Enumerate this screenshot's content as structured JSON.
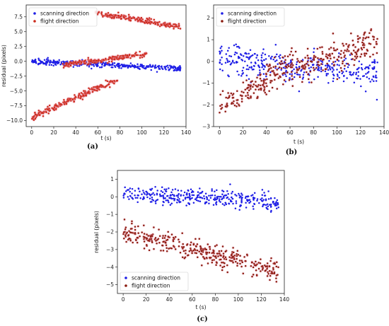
{
  "chart_data": [
    {
      "type": "scatter",
      "caption": "(a)",
      "xlabel": "t (s)",
      "ylabel": "residual (pixels)",
      "xlim": [
        -5,
        140
      ],
      "ylim": [
        -11,
        9.5
      ],
      "xticks": [
        0,
        20,
        40,
        60,
        80,
        100,
        120,
        140
      ],
      "yticks": [
        -10.0,
        -7.5,
        -5.0,
        -2.5,
        0.0,
        2.5,
        5.0,
        7.5
      ],
      "ytick_labels": [
        "−10.0",
        "−7.5",
        "−5.0",
        "−2.5",
        "0.0",
        "2.5",
        "5.0",
        "7.5"
      ],
      "legend": {
        "position": "top-left",
        "entries": [
          "scanning direction",
          "flight direction"
        ]
      },
      "series": [
        {
          "name": "scanning direction",
          "color": "#1f1fe6",
          "model": {
            "segments": [
              {
                "x": [
                  0,
                  135
                ],
                "y": [
                  0,
                  -1.2
                ],
                "noise": 0.4
              }
            ]
          }
        },
        {
          "name": "flight direction",
          "color": "#cc2a1a",
          "model": {
            "segments": [
              {
                "x": [
                  0,
                  78
                ],
                "y": [
                  -9.5,
                  -3
                ],
                "noise": 0.5
              },
              {
                "x": [
                  28,
                  105
                ],
                "y": [
                  -0.6,
                  1.2
                ],
                "noise": 0.4
              },
              {
                "x": [
                  58,
                  135
                ],
                "y": [
                  8.2,
                  5.8
                ],
                "noise": 0.4
              }
            ]
          }
        }
      ]
    },
    {
      "type": "scatter",
      "caption": "(b)",
      "xlabel": "t (s)",
      "ylabel": "",
      "xlim": [
        -5,
        140
      ],
      "ylim": [
        -3,
        2.6
      ],
      "xticks": [
        0,
        20,
        40,
        60,
        80,
        100,
        120,
        140
      ],
      "yticks": [
        -3,
        -2,
        -1,
        0,
        1,
        2
      ],
      "ytick_labels": [
        "−3",
        "−2",
        "−1",
        "0",
        "1",
        "2"
      ],
      "legend": {
        "position": "top-left",
        "entries": [
          "scanning direction",
          "flight direction"
        ]
      },
      "series": [
        {
          "name": "scanning direction",
          "color": "#1f1fe6",
          "model": {
            "segments": [
              {
                "x": [
                  0,
                  135
                ],
                "y": [
                  0.1,
                  -0.5
                ],
                "noise": 0.65
              }
            ]
          }
        },
        {
          "name": "flight direction",
          "color": "#8b1a0e",
          "model": {
            "segments": [
              {
                "x": [
                  0,
                  40
                ],
                "y": [
                  -2.1,
                  -0.9
                ],
                "noise": 0.5
              },
              {
                "x": [
                  40,
                  135
                ],
                "y": [
                  -0.6,
                  0.9
                ],
                "noise": 0.7
              }
            ]
          }
        }
      ]
    },
    {
      "type": "scatter",
      "caption": "(c)",
      "xlabel": "t (s)",
      "ylabel": "residual (pixels)",
      "xlim": [
        -5,
        140
      ],
      "ylim": [
        -5.5,
        1.5
      ],
      "xticks": [
        0,
        20,
        40,
        60,
        80,
        100,
        120,
        140
      ],
      "yticks": [
        -5,
        -4,
        -3,
        -2,
        -1,
        0,
        1
      ],
      "ytick_labels": [
        "−5",
        "−4",
        "−3",
        "−2",
        "−1",
        "0",
        "1"
      ],
      "legend": {
        "position": "bottom-left",
        "entries": [
          "scanning direction",
          "flight direction"
        ]
      },
      "series": [
        {
          "name": "scanning direction",
          "color": "#1f1fe6",
          "model": {
            "segments": [
              {
                "x": [
                  0,
                  135
                ],
                "y": [
                  0.2,
                  -0.3
                ],
                "noise": 0.45
              }
            ]
          }
        },
        {
          "name": "flight direction",
          "color": "#8b1a0e",
          "model": {
            "segments": [
              {
                "x": [
                  0,
                  135
                ],
                "y": [
                  -2.0,
                  -4.2
                ],
                "noise": 0.55
              }
            ]
          }
        }
      ]
    }
  ]
}
